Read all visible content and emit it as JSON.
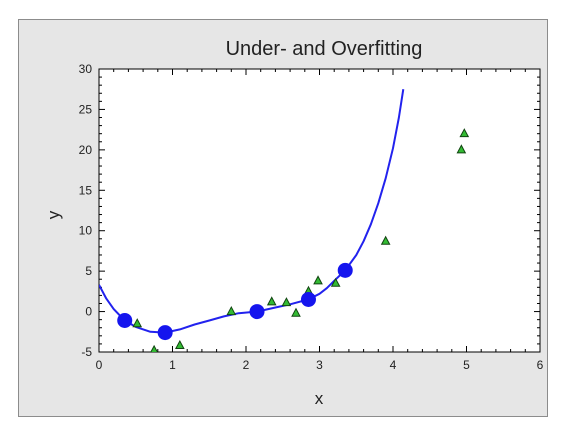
{
  "chart_data": {
    "type": "scatter",
    "title": "Under- and Overfitting",
    "xlabel": "x",
    "ylabel": "y",
    "xlim": [
      0,
      6
    ],
    "ylim": [
      -5,
      30
    ],
    "xticks": [
      0,
      1,
      2,
      3,
      4,
      5,
      6
    ],
    "yticks": [
      -5,
      0,
      5,
      10,
      15,
      20,
      25,
      30
    ],
    "grid": false,
    "legend": "none",
    "colors": {
      "background": "#e6e6e6",
      "plot_area": "#ffffff",
      "curve": "#2222ee",
      "fit_points": "#1515ee",
      "data_fill": "#33bb33",
      "data_stroke": "#114411"
    },
    "series": [
      {
        "marker": "triangle",
        "x": [
          0.52,
          0.75,
          1.1,
          1.8,
          2.35,
          2.55,
          2.68,
          2.85,
          2.98,
          3.22,
          3.9,
          4.93,
          4.97
        ],
        "y": [
          -1.5,
          -4.8,
          -4.2,
          0.0,
          1.2,
          1.1,
          -0.2,
          2.5,
          3.8,
          3.5,
          8.7,
          20.0,
          22.0
        ]
      },
      {
        "marker": "circle",
        "x": [
          0.35,
          0.9,
          2.15,
          2.85,
          3.35
        ],
        "y": [
          -1.1,
          -2.6,
          0.0,
          1.5,
          5.1
        ]
      },
      {
        "type": "line",
        "x": [
          0.0,
          0.1,
          0.2,
          0.35,
          0.5,
          0.7,
          0.9,
          1.1,
          1.3,
          1.5,
          1.7,
          1.9,
          2.15,
          2.4,
          2.6,
          2.85,
          3.0,
          3.1,
          3.2,
          3.35,
          3.5,
          3.6,
          3.7,
          3.8,
          3.9,
          4.0,
          4.08,
          4.14
        ],
        "y": [
          3.3,
          1.6,
          0.3,
          -1.1,
          -1.9,
          -2.5,
          -2.6,
          -2.2,
          -1.6,
          -1.1,
          -0.6,
          -0.2,
          0.0,
          0.5,
          0.9,
          1.5,
          2.2,
          2.9,
          3.8,
          5.1,
          7.0,
          8.7,
          10.8,
          13.4,
          16.5,
          20.2,
          24.0,
          27.5
        ]
      }
    ]
  }
}
